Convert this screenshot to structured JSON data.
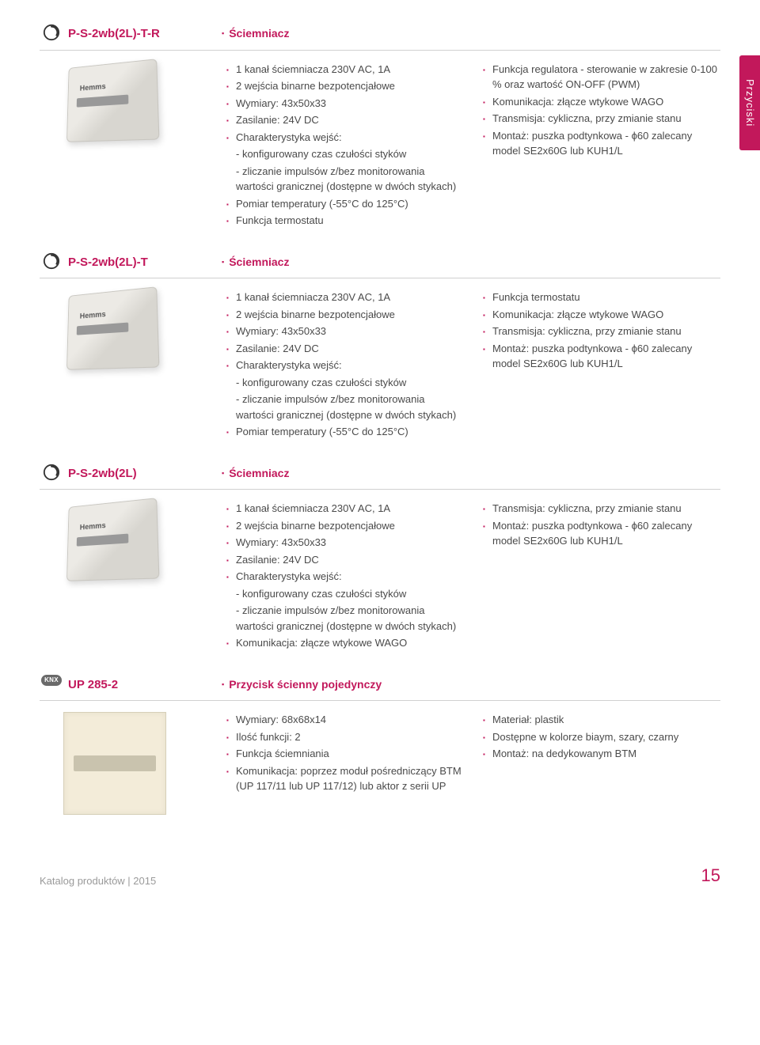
{
  "colors": {
    "accent": "#c2185b",
    "text": "#4a4a4a",
    "rule": "#d0d0d0",
    "sidebar_bg": "#c2185b",
    "sidebar_text": "#ffffff"
  },
  "sidebar_label": "Przyciski",
  "products": [
    {
      "code": "P-S-2wb(2L)-T-R",
      "subtype": "Ściemniacz",
      "logo": "circle",
      "img": "device",
      "left": [
        "1 kanał ściemniacza 230V AC, 1A",
        "2 wejścia binarne bezpotencjałowe",
        "Wymiary: 43x50x33",
        "Zasilanie: 24V DC",
        "Charakterystyka wejść:",
        "- konfigurowany czas czułości styków",
        "- zliczanie impulsów z/bez monitorowania wartości granicznej (dostępne w dwóch stykach)",
        "Pomiar temperatury (-55°C do 125°C)",
        "Funkcja termostatu"
      ],
      "left_sub": [
        5,
        6
      ],
      "right": [
        "Funkcja regulatora - sterowanie w zakresie 0-100 % oraz wartość ON-OFF (PWM)",
        "Komunikacja: złącze wtykowe WAGO",
        "Transmisja: cykliczna, przy zmianie stanu",
        "Montaż: puszka podtynkowa - ϕ60 zalecany model SE2x60G lub KUH1/L"
      ]
    },
    {
      "code": "P-S-2wb(2L)-T",
      "subtype": "Ściemniacz",
      "logo": "circle",
      "img": "device",
      "left": [
        "1 kanał ściemniacza 230V AC, 1A",
        "2 wejścia binarne bezpotencjałowe",
        "Wymiary: 43x50x33",
        "Zasilanie: 24V DC",
        "Charakterystyka wejść:",
        "- konfigurowany czas czułości styków",
        "- zliczanie impulsów z/bez monitorowania wartości granicznej (dostępne w dwóch stykach)",
        "Pomiar temperatury (-55°C do 125°C)"
      ],
      "left_sub": [
        5,
        6
      ],
      "right": [
        "Funkcja termostatu",
        "Komunikacja: złącze wtykowe WAGO",
        "Transmisja: cykliczna, przy zmianie stanu",
        "Montaż: puszka podtynkowa - ϕ60 zalecany model SE2x60G lub KUH1/L"
      ]
    },
    {
      "code": "P-S-2wb(2L)",
      "subtype": "Ściemniacz",
      "logo": "circle",
      "img": "device",
      "left": [
        "1 kanał ściemniacza 230V AC, 1A",
        "2 wejścia binarne bezpotencjałowe",
        "Wymiary: 43x50x33",
        "Zasilanie: 24V DC",
        "Charakterystyka wejść:",
        "- konfigurowany czas czułości styków",
        "- zliczanie impulsów z/bez monitorowania wartości granicznej (dostępne w dwóch stykach)",
        "Komunikacja: złącze wtykowe WAGO"
      ],
      "left_sub": [
        5,
        6
      ],
      "right": [
        "Transmisja: cykliczna, przy zmianie stanu",
        "Montaż: puszka podtynkowa - ϕ60 zalecany model SE2x60G lub KUH1/L"
      ]
    },
    {
      "code": "UP 285-2",
      "subtype": "Przycisk ścienny pojedynczy",
      "logo": "knx",
      "img": "button",
      "left": [
        "Wymiary: 68x68x14",
        "Ilość funkcji: 2",
        "Funkcja ściemniania",
        "Komunikacja: poprzez moduł pośredniczący BTM (UP 117/11 lub UP 117/12) lub aktor z serii UP"
      ],
      "left_sub": [],
      "right": [
        "Materiał: plastik",
        "Dostępne w kolorze biaym, szary, czarny",
        "Montaż: na dedykowanym BTM"
      ]
    }
  ],
  "footer": {
    "left": "Katalog produktów | 2015",
    "page": "15"
  }
}
